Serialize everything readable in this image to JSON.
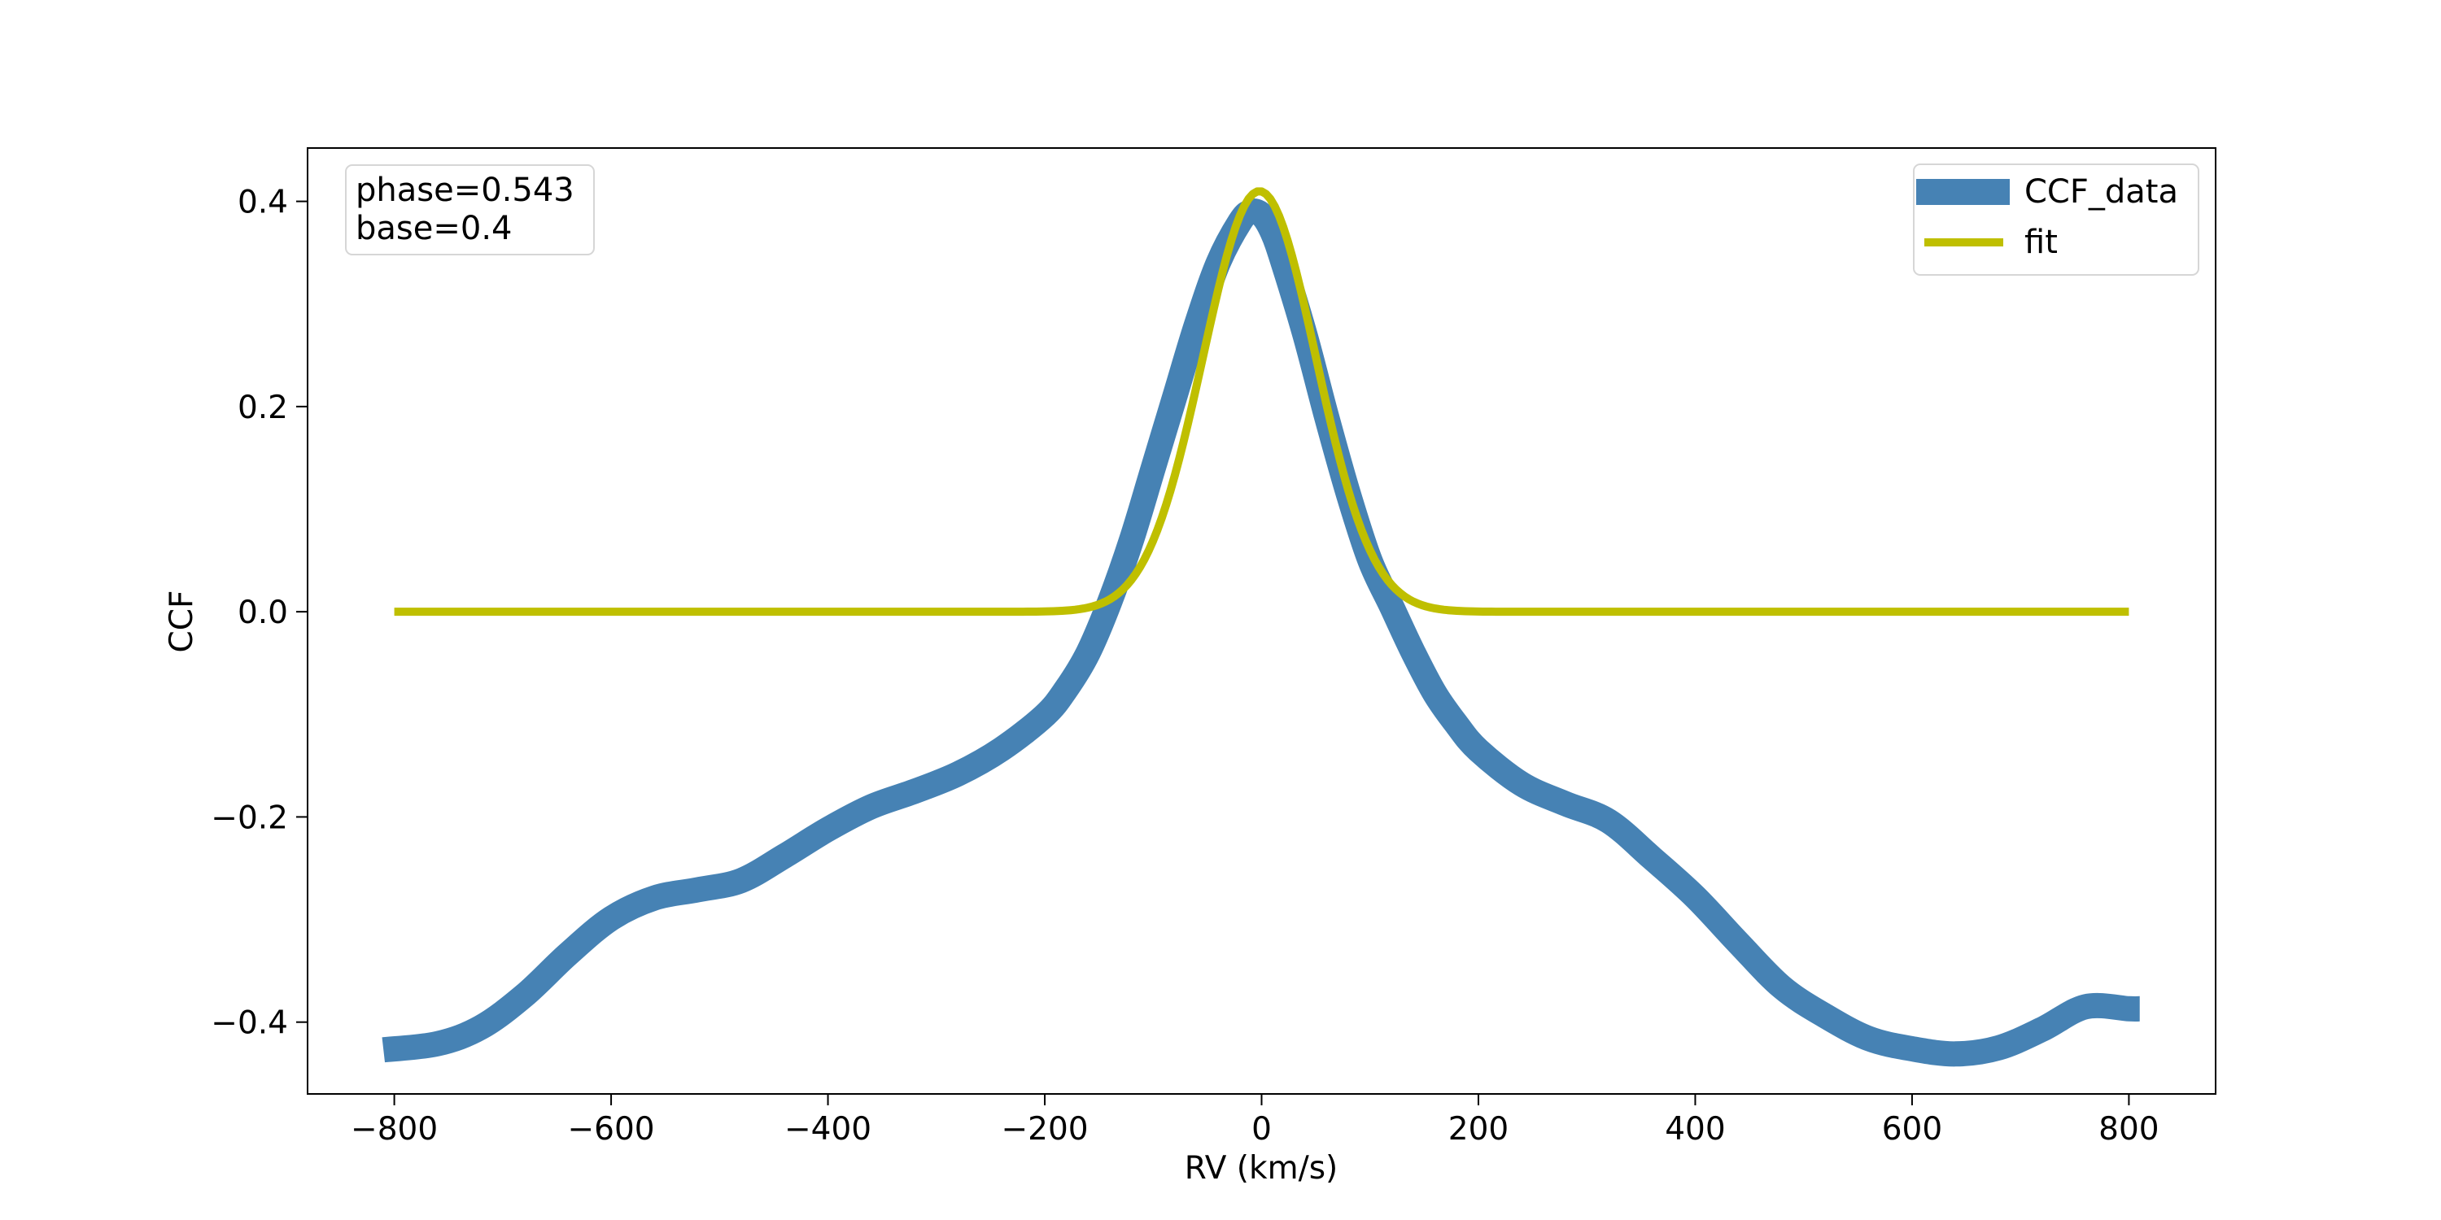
{
  "chart_data": {
    "type": "line",
    "title": "",
    "xlabel": "RV (km/s)",
    "ylabel": "CCF",
    "xlim": [
      -880,
      880
    ],
    "ylim": [
      -0.47,
      0.452
    ],
    "xticks": [
      -800,
      -600,
      -400,
      -200,
      0,
      200,
      400,
      600,
      800
    ],
    "xtick_labels": [
      "−800",
      "−600",
      "−400",
      "−200",
      "0",
      "200",
      "400",
      "600",
      "800"
    ],
    "yticks": [
      -0.4,
      -0.2,
      0.0,
      0.2,
      0.4
    ],
    "ytick_labels": [
      "−0.4",
      "−0.2",
      "0.0",
      "0.2",
      "0.4"
    ],
    "grid": false,
    "legend_position": "top-right",
    "annotation": {
      "position": "top-left",
      "lines": [
        "phase=0.543",
        "base=0.4"
      ]
    },
    "series": [
      {
        "name": "CCF_data",
        "color": "#4682b4",
        "x": [
          -810,
          -760,
          -720,
          -680,
          -640,
          -600,
          -560,
          -520,
          -480,
          -440,
          -400,
          -360,
          -320,
          -280,
          -240,
          -200,
          -180,
          -160,
          -140,
          -120,
          -100,
          -80,
          -60,
          -40,
          -20,
          -10,
          0,
          10,
          20,
          40,
          60,
          80,
          100,
          120,
          140,
          160,
          180,
          200,
          240,
          280,
          320,
          360,
          400,
          440,
          480,
          520,
          560,
          600,
          640,
          680,
          720,
          760,
          800,
          810
        ],
        "y": [
          -0.427,
          -0.421,
          -0.405,
          -0.374,
          -0.334,
          -0.299,
          -0.279,
          -0.271,
          -0.262,
          -0.238,
          -0.212,
          -0.19,
          -0.175,
          -0.158,
          -0.134,
          -0.101,
          -0.075,
          -0.04,
          0.01,
          0.07,
          0.14,
          0.21,
          0.28,
          0.34,
          0.38,
          0.39,
          0.387,
          0.37,
          0.34,
          0.27,
          0.19,
          0.115,
          0.05,
          0.005,
          -0.04,
          -0.08,
          -0.11,
          -0.135,
          -0.168,
          -0.187,
          -0.204,
          -0.24,
          -0.278,
          -0.323,
          -0.366,
          -0.394,
          -0.416,
          -0.426,
          -0.431,
          -0.425,
          -0.407,
          -0.385,
          -0.387,
          -0.387
        ]
      },
      {
        "name": "fit",
        "color": "#bfbf00",
        "amplitude": 0.41,
        "center": -2,
        "sigma": 52,
        "x_range": [
          -800,
          800
        ]
      }
    ]
  }
}
